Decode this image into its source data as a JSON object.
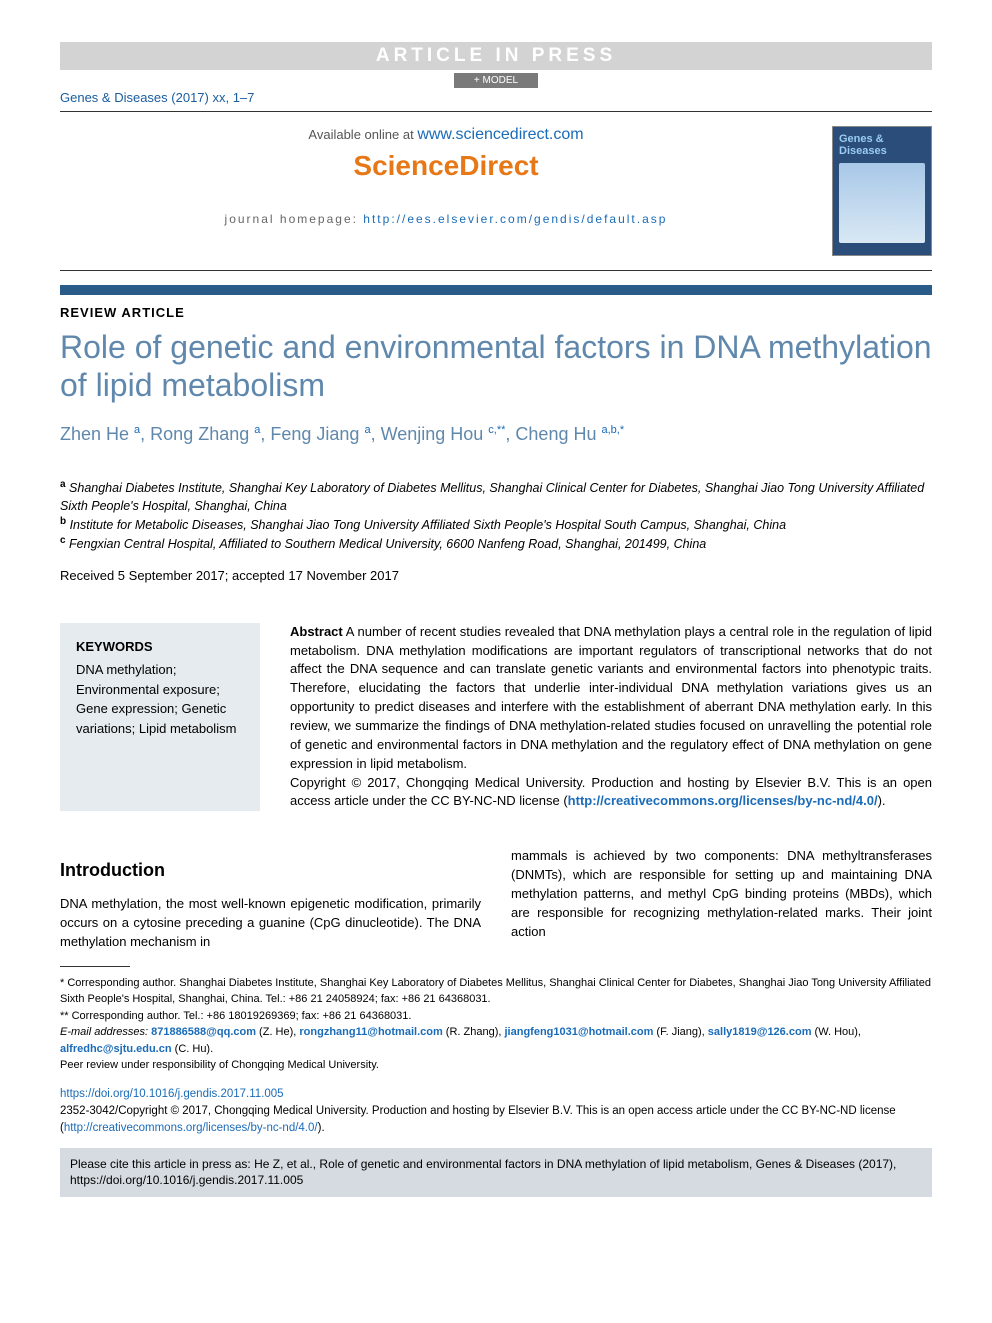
{
  "colors": {
    "accent_blue": "#6088ac",
    "link_blue": "#1a6bb8",
    "orange": "#e67817",
    "rule_blue": "#2a5c8a",
    "grey_bg": "#d3d3d3",
    "kw_bg": "#e6ebef",
    "cite_bg": "#d5dbe0"
  },
  "header": {
    "press_banner": "ARTICLE IN PRESS",
    "model_badge": "+ MODEL",
    "citation_line": "Genes & Diseases (2017) xx, 1–7",
    "available_prefix": "Available online at ",
    "available_url": "www.sciencedirect.com",
    "scidirect_logo": "ScienceDirect",
    "homepage_label": "journal homepage: ",
    "homepage_url": "http://ees.elsevier.com/gendis/default.asp",
    "cover_title": "Genes & Diseases"
  },
  "article": {
    "type": "REVIEW ARTICLE",
    "title": "Role of genetic and environmental factors in DNA methylation of lipid metabolism",
    "authors": [
      {
        "name": "Zhen He ",
        "sup": "a"
      },
      {
        "name": ", Rong Zhang ",
        "sup": "a"
      },
      {
        "name": ", Feng Jiang ",
        "sup": "a"
      },
      {
        "name": ", Wenjing Hou ",
        "sup": "c,**"
      },
      {
        "name": ", Cheng Hu ",
        "sup": "a,b,*"
      }
    ],
    "affiliations": [
      {
        "sup": "a",
        "text": " Shanghai Diabetes Institute, Shanghai Key Laboratory of Diabetes Mellitus, Shanghai Clinical Center for Diabetes, Shanghai Jiao Tong University Affiliated Sixth People's Hospital, Shanghai, China"
      },
      {
        "sup": "b",
        "text": " Institute for Metabolic Diseases, Shanghai Jiao Tong University Affiliated Sixth People's Hospital South Campus, Shanghai, China"
      },
      {
        "sup": "c",
        "text": " Fengxian Central Hospital, Affiliated to Southern Medical University, 6600 Nanfeng Road, Shanghai, 201499, China"
      }
    ],
    "dates": "Received 5 September 2017; accepted 17 November 2017"
  },
  "keywords": {
    "title": "KEYWORDS",
    "items": "DNA methylation; Environmental exposure; Gene expression; Genetic variations; Lipid metabolism"
  },
  "abstract": {
    "label": "Abstract",
    "body": "    A number of recent studies revealed that DNA methylation plays a central role in the regulation of lipid metabolism. DNA methylation modifications are important regulators of transcriptional networks that do not affect the DNA sequence and can translate genetic variants and environmental factors into phenotypic traits. Therefore, elucidating the factors that underlie inter-individual DNA methylation variations gives us an opportunity to predict diseases and interfere with the establishment of aberrant DNA methylation early. In this review, we summarize the findings of DNA methylation-related studies focused on unravelling the potential role of genetic and environmental factors in DNA methylation and the regulatory effect of DNA methylation on gene expression in lipid metabolism.",
    "copyright_prefix": "Copyright © 2017, Chongqing Medical University. Production and hosting by Elsevier B.V. This is an open access article under the CC BY-NC-ND license (",
    "cc_url": "http://creativecommons.org/licenses/by-nc-nd/4.0/",
    "copyright_suffix": ")."
  },
  "body": {
    "intro_head": "Introduction",
    "col1": "DNA methylation, the most well-known epigenetic modification, primarily occurs on a cytosine preceding a guanine (CpG dinucleotide). The DNA methylation mechanism in",
    "col2": "mammals is achieved by two components: DNA methyltransferases (DNMTs), which are responsible for setting up and maintaining DNA methylation patterns, and methyl CpG binding proteins (MBDs), which are responsible for recognizing methylation-related marks. Their joint action"
  },
  "footnotes": {
    "corr1": "* Corresponding author. Shanghai Diabetes Institute, Shanghai Key Laboratory of Diabetes Mellitus, Shanghai Clinical Center for Diabetes, Shanghai Jiao Tong University Affiliated Sixth People's Hospital, Shanghai, China. Tel.: +86 21 24058924; fax: +86 21 64368031.",
    "corr2": "** Corresponding author. Tel.: +86 18019269369; fax: +86 21 64368031.",
    "email_label": "E-mail addresses: ",
    "emails": [
      {
        "link": "871886588@qq.com",
        "tail": " (Z. He), "
      },
      {
        "link": "rongzhang11@hotmail.com",
        "tail": " (R. Zhang), "
      },
      {
        "link": "jiangfeng1031@hotmail.com",
        "tail": " (F. Jiang), "
      },
      {
        "link": "sally1819@126.com",
        "tail": " (W. Hou), "
      },
      {
        "link": "alfredhc@sjtu.edu.cn",
        "tail": " (C. Hu)."
      }
    ],
    "peer": "Peer review under responsibility of Chongqing Medical University."
  },
  "doi": {
    "url": "https://doi.org/10.1016/j.gendis.2017.11.005",
    "copyright": "2352-3042/Copyright © 2017, Chongqing Medical University. Production and hosting by Elsevier B.V. This is an open access article under the CC BY-NC-ND license (",
    "cc_url2": "http://creativecommons.org/licenses/by-nc-nd/4.0/",
    "suffix": ")."
  },
  "citebox": {
    "text_prefix": "Please cite this article in press as: He Z, et al., Role of genetic and environmental factors in DNA methylation of lipid metabolism, Genes & Diseases (2017), ",
    "url": "https://doi.org/10.1016/j.gendis.2017.11.005"
  }
}
